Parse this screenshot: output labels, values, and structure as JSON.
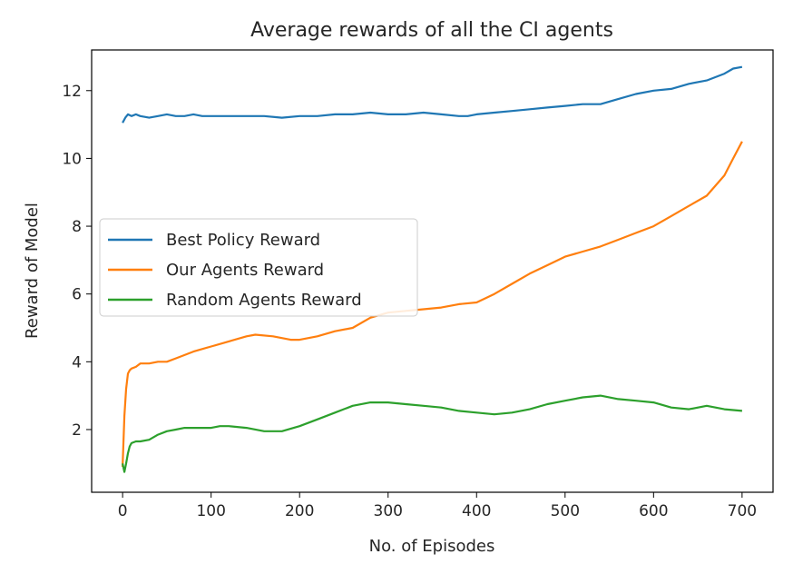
{
  "chart_data": {
    "type": "line",
    "title": "Average rewards of all the CI agents",
    "xlabel": "No. of Episodes",
    "ylabel": "Reward of Model",
    "xlim": [
      -35,
      735
    ],
    "ylim": [
      0.15,
      13.2
    ],
    "xticks": [
      0,
      100,
      200,
      300,
      400,
      500,
      600,
      700
    ],
    "yticks": [
      2,
      4,
      6,
      8,
      10,
      12
    ],
    "grid": false,
    "legend_position": "center-left",
    "series": [
      {
        "name": "Best Policy Reward",
        "color": "#1f77b4",
        "x": [
          0,
          3,
          6,
          10,
          15,
          20,
          30,
          40,
          50,
          60,
          70,
          80,
          90,
          100,
          120,
          140,
          160,
          180,
          200,
          220,
          240,
          260,
          280,
          300,
          320,
          340,
          360,
          380,
          390,
          400,
          420,
          440,
          460,
          480,
          500,
          520,
          540,
          560,
          580,
          600,
          620,
          640,
          660,
          680,
          690,
          700
        ],
        "y": [
          11.05,
          11.2,
          11.3,
          11.25,
          11.3,
          11.25,
          11.2,
          11.25,
          11.3,
          11.25,
          11.25,
          11.3,
          11.25,
          11.25,
          11.25,
          11.25,
          11.25,
          11.2,
          11.25,
          11.25,
          11.3,
          11.3,
          11.35,
          11.3,
          11.3,
          11.35,
          11.3,
          11.25,
          11.25,
          11.3,
          11.35,
          11.4,
          11.45,
          11.5,
          11.55,
          11.6,
          11.6,
          11.75,
          11.9,
          12.0,
          12.05,
          12.2,
          12.3,
          12.5,
          12.65,
          12.7
        ]
      },
      {
        "name": "Our Agents Reward",
        "color": "#ff7f0e",
        "x": [
          0,
          2,
          4,
          6,
          8,
          10,
          15,
          20,
          30,
          40,
          50,
          60,
          80,
          100,
          120,
          140,
          150,
          170,
          190,
          200,
          220,
          240,
          260,
          280,
          300,
          320,
          340,
          360,
          380,
          400,
          420,
          440,
          460,
          480,
          500,
          520,
          540,
          560,
          580,
          600,
          620,
          640,
          660,
          680,
          690,
          700
        ],
        "y": [
          0.9,
          2.4,
          3.2,
          3.65,
          3.75,
          3.8,
          3.85,
          3.95,
          3.95,
          4.0,
          4.0,
          4.1,
          4.3,
          4.45,
          4.6,
          4.75,
          4.8,
          4.75,
          4.65,
          4.65,
          4.75,
          4.9,
          5.0,
          5.3,
          5.45,
          5.5,
          5.55,
          5.6,
          5.7,
          5.75,
          6.0,
          6.3,
          6.6,
          6.85,
          7.1,
          7.25,
          7.4,
          7.6,
          7.8,
          8.0,
          8.3,
          8.6,
          8.9,
          9.5,
          10.0,
          10.5
        ]
      },
      {
        "name": "Random Agents Reward",
        "color": "#2ca02c",
        "x": [
          0,
          2,
          4,
          6,
          8,
          10,
          15,
          20,
          30,
          40,
          50,
          60,
          70,
          80,
          90,
          100,
          110,
          120,
          140,
          160,
          180,
          200,
          220,
          240,
          260,
          280,
          300,
          320,
          340,
          360,
          380,
          400,
          420,
          440,
          460,
          480,
          500,
          520,
          540,
          560,
          580,
          600,
          620,
          640,
          660,
          680,
          700
        ],
        "y": [
          1.0,
          0.75,
          1.0,
          1.3,
          1.5,
          1.6,
          1.65,
          1.65,
          1.7,
          1.85,
          1.95,
          2.0,
          2.05,
          2.05,
          2.05,
          2.05,
          2.1,
          2.1,
          2.05,
          1.95,
          1.95,
          2.1,
          2.3,
          2.5,
          2.7,
          2.8,
          2.8,
          2.75,
          2.7,
          2.65,
          2.55,
          2.5,
          2.45,
          2.5,
          2.6,
          2.75,
          2.85,
          2.95,
          3.0,
          2.9,
          2.85,
          2.8,
          2.65,
          2.6,
          2.7,
          2.6,
          2.55
        ]
      }
    ]
  }
}
